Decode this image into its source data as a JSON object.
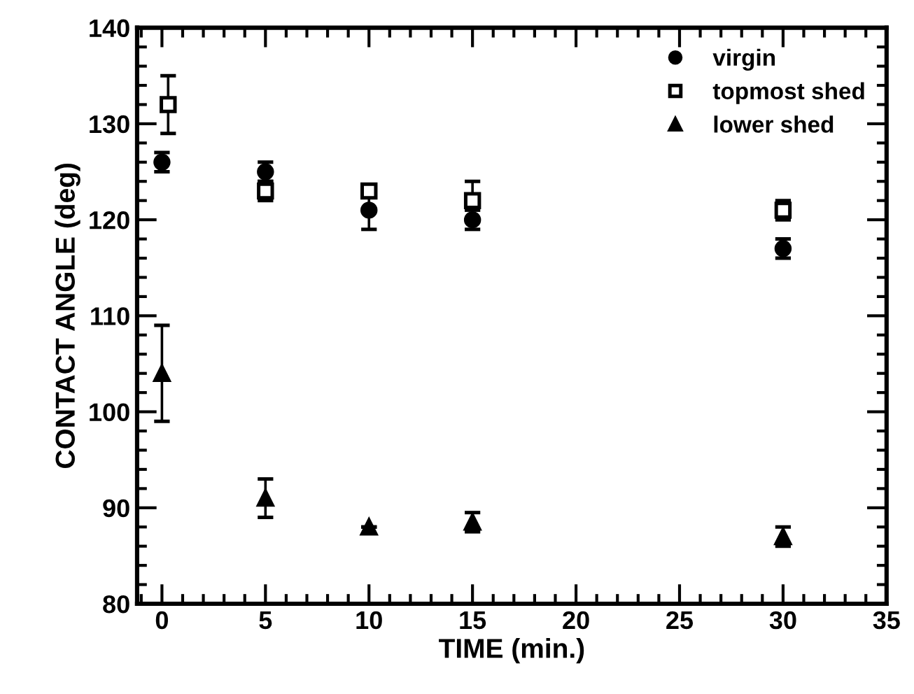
{
  "chart_data": {
    "type": "scatter",
    "xlabel": "TIME (min.)",
    "ylabel": "CONTACT ANGLE (deg)",
    "xlim": [
      -1.2,
      35
    ],
    "ylim": [
      80,
      140
    ],
    "xticks": [
      0,
      5,
      10,
      15,
      20,
      25,
      30,
      35
    ],
    "yticks": [
      80,
      90,
      100,
      110,
      120,
      130,
      140
    ],
    "grid": false,
    "legend": "top right",
    "series": [
      {
        "name": "virgin",
        "color": "#000000",
        "marker": "circle",
        "x": [
          0,
          5,
          10,
          15,
          30
        ],
        "values": [
          126,
          125,
          121,
          120,
          117
        ],
        "errors": [
          1,
          1,
          2,
          1,
          1
        ]
      },
      {
        "name": "topmost shed",
        "color": "#000000",
        "marker": "square",
        "x": [
          0.3,
          5,
          10,
          15,
          30
        ],
        "values": [
          132,
          123,
          123,
          122,
          121
        ],
        "errors": [
          3,
          1,
          null,
          2,
          1
        ]
      },
      {
        "name": "lower shed",
        "color": "#000000",
        "marker": "triangle",
        "x": [
          0,
          5,
          10,
          15,
          30
        ],
        "values": [
          104,
          91,
          88,
          88.5,
          87
        ],
        "errors": [
          5,
          2,
          null,
          1,
          1
        ]
      }
    ]
  }
}
